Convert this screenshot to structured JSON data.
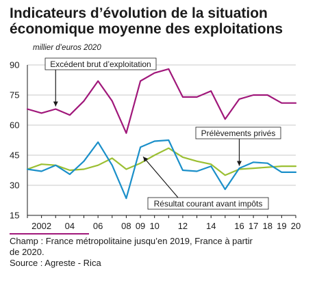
{
  "title_lines": [
    "Indicateurs d’évolution de la situation",
    "économique moyenne des exploitations"
  ],
  "chart_data": {
    "type": "line",
    "unit_label": "millier d’euros 2020",
    "x": [
      2001,
      2002,
      2003,
      2004,
      2005,
      2006,
      2007,
      2008,
      2009,
      2010,
      2011,
      2012,
      2013,
      2014,
      2015,
      2016,
      2017,
      2018,
      2019,
      2020
    ],
    "x_tick_values": [
      2002,
      2004,
      2006,
      2008,
      2009,
      2010,
      2012,
      2014,
      2016,
      2017,
      2018,
      2019,
      2020
    ],
    "x_tick_labels": [
      "2002",
      "04",
      "06",
      "08",
      "09",
      "10",
      "12",
      "14",
      "16",
      "17",
      "18",
      "19",
      "20"
    ],
    "xlim": [
      2001,
      2020
    ],
    "ylim": [
      15,
      90
    ],
    "y_ticks": [
      15,
      30,
      45,
      60,
      75,
      90
    ],
    "y_tick_labels": [
      "15",
      "30",
      "45",
      "60",
      "75",
      "90"
    ],
    "grid": true,
    "series": [
      {
        "name": "Excédent brut d’exploitation",
        "color": "#a0177a",
        "values": [
          68,
          66,
          68,
          65,
          72,
          82,
          72,
          56,
          82,
          86,
          88,
          74,
          74,
          77,
          63,
          73,
          75,
          75,
          71,
          71
        ]
      },
      {
        "name": "Prélèvements privés",
        "color": "#9bbf32",
        "values": [
          38,
          40.5,
          40,
          37.5,
          38,
          40,
          43.5,
          38,
          41,
          45,
          48.5,
          44,
          42,
          40.5,
          35,
          38,
          38.5,
          39,
          39.5,
          39.5
        ]
      },
      {
        "name": "Résultat courant avant impôts",
        "color": "#1a8fc9",
        "values": [
          38,
          37,
          40,
          35.5,
          42,
          51.5,
          40,
          23.5,
          49,
          52,
          52.5,
          37.5,
          37,
          39.5,
          28,
          38.5,
          41.5,
          41,
          36.5,
          36.5
        ]
      }
    ],
    "annotations": [
      "Excédent brut d’exploitation",
      "Prélèvements privés",
      "Résultat courant avant impôts"
    ]
  },
  "notes": {
    "champ_line1": "Champ : France métropolitaine jusqu’en 2019, France à partir",
    "champ_line2": "de 2020.",
    "source": "Source : Agreste - Rica"
  }
}
